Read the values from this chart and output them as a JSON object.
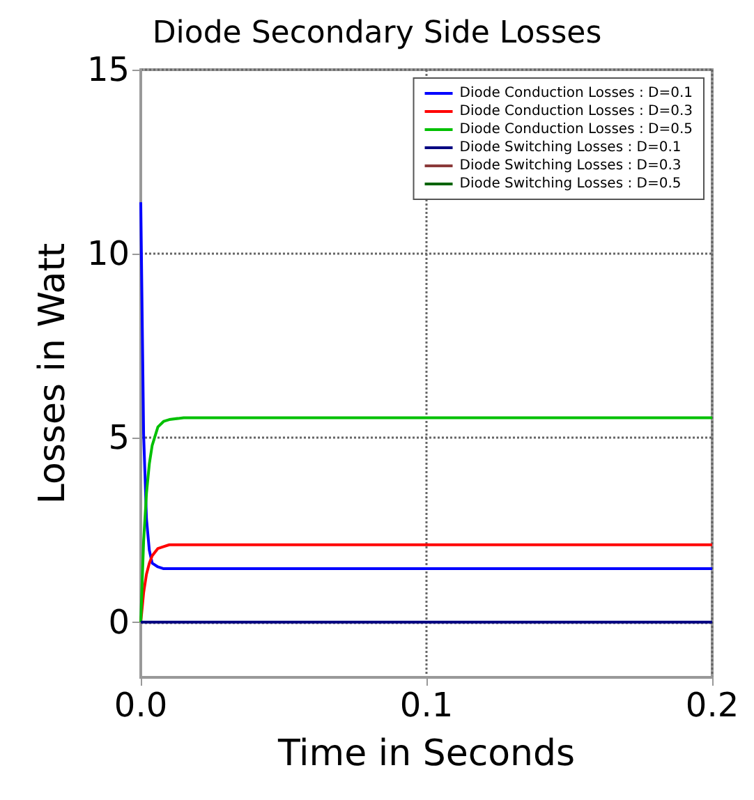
{
  "chart_data": {
    "type": "line",
    "title": "Diode Secondary Side Losses",
    "xlabel": "Time in Seconds",
    "ylabel": "Losses in Watt",
    "xlim": [
      0,
      0.2
    ],
    "xticks": [
      {
        "value": 0,
        "label": "0.0"
      },
      0.1,
      0.2
    ],
    "ylim": [
      -1.5,
      15
    ],
    "yticks": [
      0,
      5,
      10,
      15
    ],
    "grid": true,
    "legend": "top right",
    "line_style": "solid",
    "marker": "none",
    "series": [
      {
        "name": "Diode Conduction Losses : D=0.1",
        "color": "#0000ff",
        "x": [
          0,
          0.001,
          0.002,
          0.003,
          0.004,
          0.006,
          0.008,
          0.01,
          0.015,
          0.02,
          0.2
        ],
        "values": [
          11.4,
          5.1,
          2.8,
          1.95,
          1.6,
          1.5,
          1.45,
          1.45,
          1.45,
          1.45,
          1.45
        ]
      },
      {
        "name": "Diode Conduction Losses : D=0.3",
        "color": "#ff0000",
        "x": [
          0,
          0.001,
          0.002,
          0.003,
          0.004,
          0.006,
          0.008,
          0.01,
          0.015,
          0.02,
          0.2
        ],
        "values": [
          0,
          0.8,
          1.3,
          1.6,
          1.8,
          2,
          2.05,
          2.1,
          2.1,
          2.1,
          2.1
        ]
      },
      {
        "name": "Diode Conduction Losses : D=0.5",
        "color": "#00c000",
        "x": [
          0,
          0.001,
          0.002,
          0.003,
          0.004,
          0.006,
          0.008,
          0.01,
          0.015,
          0.02,
          0.2
        ],
        "values": [
          0,
          2.2,
          3.5,
          4.3,
          4.8,
          5.3,
          5.45,
          5.5,
          5.55,
          5.55,
          5.55
        ]
      },
      {
        "name": "Diode Switching Losses : D=0.1",
        "color": "#000080",
        "x": [
          0,
          0.2
        ],
        "values": [
          0,
          0
        ]
      },
      {
        "name": "Diode Switching Losses : D=0.3",
        "color": "#8b3a3a"
      },
      {
        "name": "Diode Switching Losses : D=0.5",
        "color": "#006400"
      }
    ]
  }
}
